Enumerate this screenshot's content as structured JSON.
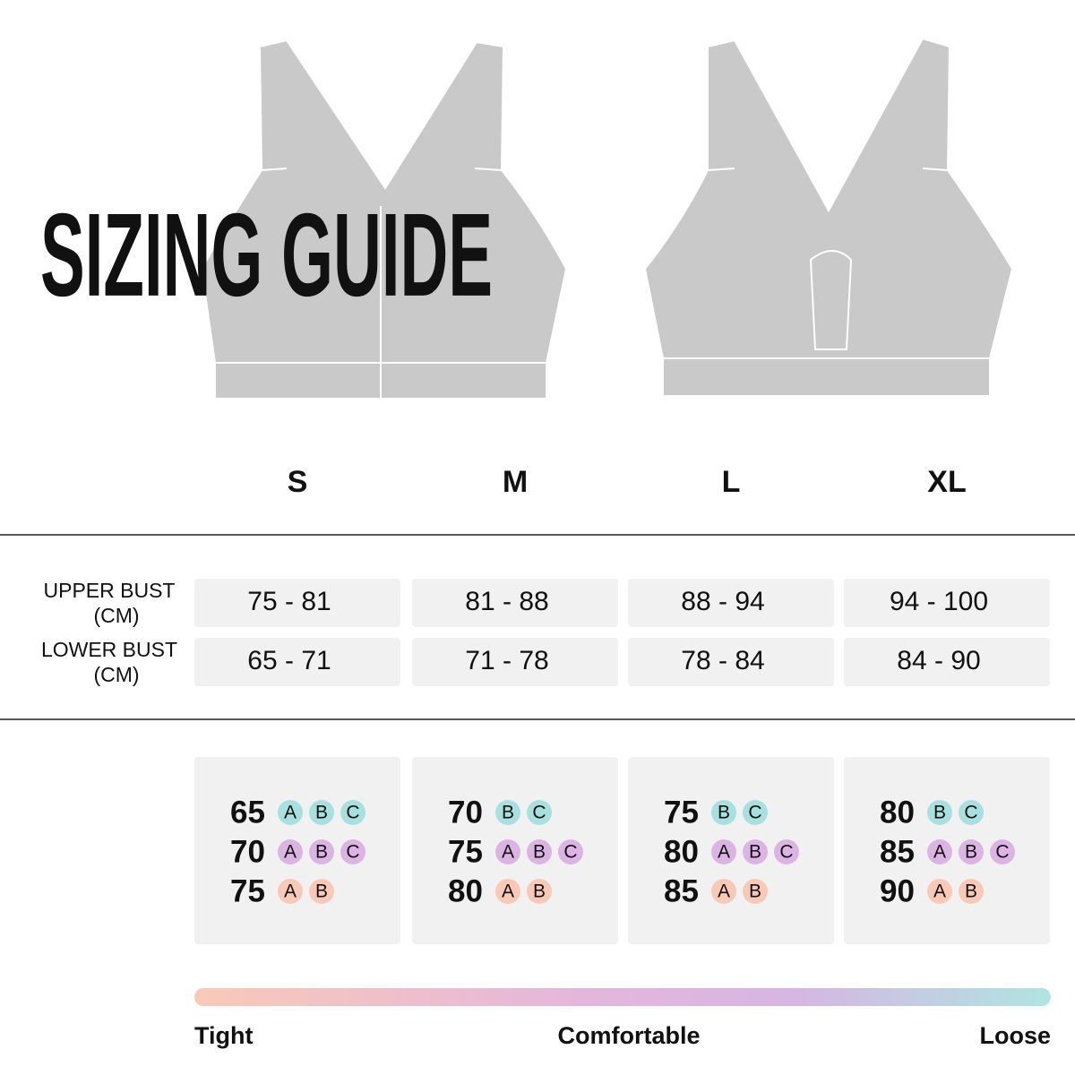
{
  "title": "SIZING GUIDE",
  "sizes": [
    "S",
    "M",
    "L",
    "XL"
  ],
  "measurements": [
    {
      "label": "UPPER BUST",
      "unit": "(CM)",
      "values": [
        "75 - 81",
        "81 - 88",
        "88 - 94",
        "94 - 100"
      ]
    },
    {
      "label": "LOWER BUST",
      "unit": "(CM)",
      "values": [
        "65 - 71",
        "71 - 78",
        "78 - 84",
        "84 - 90"
      ]
    }
  ],
  "fits": [
    [
      {
        "band": "65",
        "cups": [
          "A",
          "B",
          "C"
        ]
      },
      {
        "band": "70",
        "cups": [
          "A",
          "B",
          "C"
        ]
      },
      {
        "band": "75",
        "cups": [
          "A",
          "B"
        ]
      }
    ],
    [
      {
        "band": "70",
        "cups": [
          "B",
          "C"
        ]
      },
      {
        "band": "75",
        "cups": [
          "A",
          "B",
          "C"
        ]
      },
      {
        "band": "80",
        "cups": [
          "A",
          "B"
        ]
      }
    ],
    [
      {
        "band": "75",
        "cups": [
          "B",
          "C"
        ]
      },
      {
        "band": "80",
        "cups": [
          "A",
          "B",
          "C"
        ]
      },
      {
        "band": "85",
        "cups": [
          "A",
          "B"
        ]
      }
    ],
    [
      {
        "band": "80",
        "cups": [
          "B",
          "C"
        ]
      },
      {
        "band": "85",
        "cups": [
          "A",
          "B",
          "C"
        ]
      },
      {
        "band": "90",
        "cups": [
          "A",
          "B"
        ]
      }
    ]
  ],
  "scale": {
    "low": "Tight",
    "mid": "Comfortable",
    "high": "Loose"
  }
}
